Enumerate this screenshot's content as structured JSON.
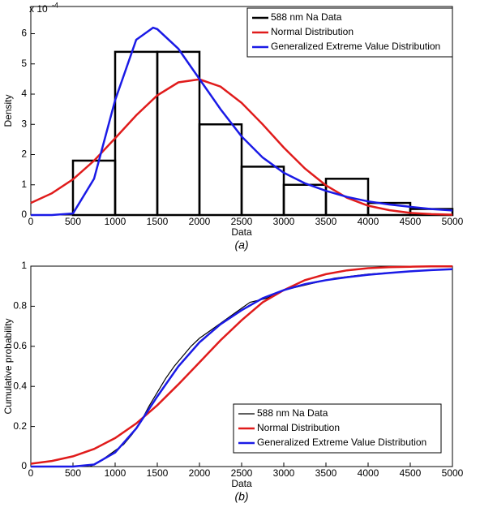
{
  "chart_data": [
    {
      "type": "histogram",
      "name": "588 nm Na Data",
      "color": "#000000",
      "bins": [
        0,
        500,
        1000,
        1500,
        2000,
        2500,
        3000,
        3500,
        4000,
        4500,
        5000
      ],
      "values": [
        0,
        1.8,
        5.4,
        5.4,
        3.0,
        1.6,
        1.0,
        1.2,
        0.4,
        0.2
      ],
      "series": [
        {
          "name": "Normal Distribution",
          "color": "#e01b1b",
          "x": [
            0,
            250,
            500,
            750,
            1000,
            1250,
            1500,
            1750,
            2000,
            2250,
            2500,
            2750,
            3000,
            3250,
            3500,
            3750,
            4000,
            4250,
            4500,
            4750,
            5000
          ],
          "values": [
            0.4,
            0.72,
            1.18,
            1.8,
            2.54,
            3.3,
            3.96,
            4.39,
            4.49,
            4.25,
            3.71,
            3.0,
            2.23,
            1.54,
            0.98,
            0.57,
            0.31,
            0.16,
            0.07,
            0.03,
            0.01
          ]
        },
        {
          "name": "Generalized Extreme Value Distribution",
          "color": "#1a1ae6",
          "x": [
            0,
            250,
            500,
            750,
            1000,
            1250,
            1450,
            1500,
            1750,
            2000,
            2250,
            2500,
            2750,
            3000,
            3250,
            3500,
            3750,
            4000,
            4250,
            4500,
            4750,
            5000
          ],
          "values": [
            0,
            0,
            0.05,
            1.2,
            3.8,
            5.8,
            6.2,
            6.15,
            5.5,
            4.5,
            3.5,
            2.6,
            1.9,
            1.4,
            1.05,
            0.8,
            0.6,
            0.45,
            0.35,
            0.27,
            0.2,
            0.15
          ]
        }
      ],
      "x_label": "Data",
      "y_label": "Density",
      "caption": "(a)",
      "y_multiplier": {
        "base": "x 10",
        "exponent": "-4"
      },
      "xlim": [
        0,
        5000
      ],
      "xticks": [
        0,
        500,
        1000,
        1500,
        2000,
        2500,
        3000,
        3500,
        4000,
        4500,
        5000
      ],
      "ylim": [
        0,
        6.9
      ],
      "yticks": [
        0,
        1,
        2,
        3,
        4,
        5,
        6
      ],
      "legend": "upper right"
    },
    {
      "type": "line",
      "series": [
        {
          "name": "588 nm Na Data",
          "color": "#000000",
          "x": [
            700,
            800,
            900,
            1000,
            1100,
            1200,
            1300,
            1400,
            1500,
            1600,
            1700,
            1800,
            1900,
            2000,
            2200,
            2400,
            2500,
            2600,
            2800,
            3000,
            3200,
            3400,
            3600,
            3800,
            4000,
            4500,
            5000
          ],
          "values": [
            0,
            0.02,
            0.05,
            0.08,
            0.11,
            0.16,
            0.22,
            0.3,
            0.37,
            0.44,
            0.5,
            0.55,
            0.6,
            0.64,
            0.7,
            0.76,
            0.79,
            0.82,
            0.84,
            0.88,
            0.9,
            0.92,
            0.94,
            0.95,
            0.96,
            0.975,
            0.985
          ]
        },
        {
          "name": "Normal Distribution",
          "color": "#e01b1b",
          "x": [
            0,
            250,
            500,
            750,
            1000,
            1250,
            1500,
            1750,
            2000,
            2250,
            2500,
            2750,
            3000,
            3250,
            3500,
            3750,
            4000,
            4250,
            4500,
            4750,
            5000
          ],
          "values": [
            0.014,
            0.028,
            0.051,
            0.088,
            0.142,
            0.215,
            0.306,
            0.41,
            0.52,
            0.63,
            0.73,
            0.82,
            0.88,
            0.93,
            0.96,
            0.979,
            0.99,
            0.995,
            0.997,
            0.999,
            0.999
          ]
        },
        {
          "name": "Generalized Extreme Value Distribution",
          "color": "#1a1ae6",
          "x": [
            0,
            250,
            500,
            750,
            1000,
            1250,
            1500,
            1750,
            2000,
            2250,
            2500,
            2750,
            3000,
            3250,
            3500,
            3750,
            4000,
            4250,
            4500,
            4750,
            5000
          ],
          "values": [
            0,
            0,
            0,
            0.01,
            0.07,
            0.19,
            0.35,
            0.5,
            0.62,
            0.71,
            0.78,
            0.84,
            0.88,
            0.91,
            0.93,
            0.945,
            0.957,
            0.966,
            0.974,
            0.98,
            0.985
          ]
        }
      ],
      "x_label": "Data",
      "y_label": "Cumulative probability",
      "caption": "(b)",
      "xlim": [
        0,
        5000
      ],
      "xticks": [
        0,
        500,
        1000,
        1500,
        2000,
        2500,
        3000,
        3500,
        4000,
        4500,
        5000
      ],
      "ylim": [
        0,
        1
      ],
      "yticks": [
        0,
        0.2,
        0.4,
        0.6,
        0.8,
        1
      ],
      "legend": "lower right"
    }
  ]
}
